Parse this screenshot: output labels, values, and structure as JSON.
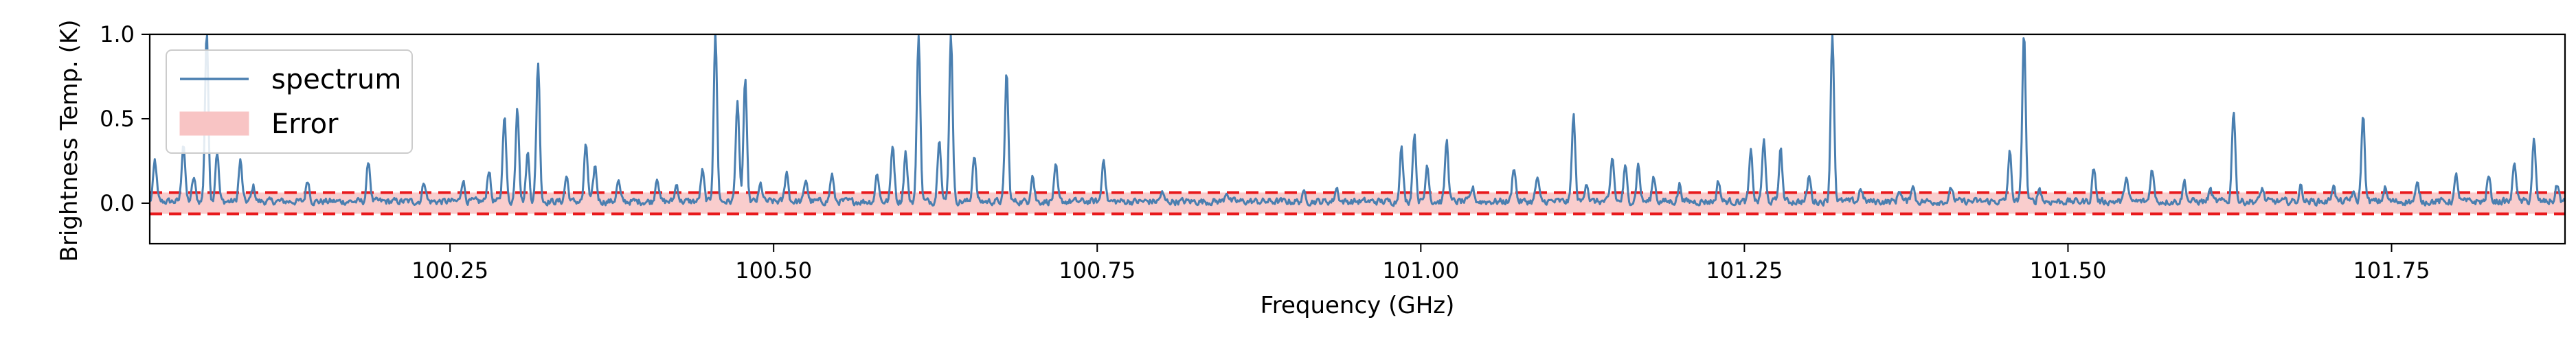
{
  "chart_data": {
    "type": "line",
    "xlabel": "Frequency (GHz)",
    "ylabel": "Brightness Temp. (K)",
    "xlim": [
      100.018,
      101.884
    ],
    "ylim": [
      -0.24,
      1.0
    ],
    "x_ticks": [
      100.25,
      100.5,
      100.75,
      101.0,
      101.25,
      101.5,
      101.75
    ],
    "x_tick_labels": [
      "100.25",
      "100.50",
      "100.75",
      "101.00",
      "101.25",
      "101.50",
      "101.75"
    ],
    "y_ticks": [
      0.0,
      0.5,
      1.0
    ],
    "y_tick_labels": [
      "0.0",
      "0.5",
      "1.0"
    ],
    "grid": false,
    "legend_position": "top-left",
    "legend": [
      {
        "label": "spectrum",
        "kind": "line"
      },
      {
        "label": "Error",
        "kind": "band"
      }
    ],
    "colors": {
      "spectrum": "#4a7fb0",
      "error_fill": "#f8c4c4",
      "error_line": "#e8191c"
    },
    "error_band": {
      "lower": -0.063,
      "upper": 0.063,
      "line_style": "dashed"
    },
    "baseline": {
      "mean": 0.01,
      "noise": 0.03
    },
    "series": [
      {
        "name": "spectrum",
        "peaks": [
          [
            100.022,
            0.24
          ],
          [
            100.044,
            0.35
          ],
          [
            100.052,
            0.14
          ],
          [
            100.062,
            1.0
          ],
          [
            100.07,
            0.3
          ],
          [
            100.088,
            0.24
          ],
          [
            100.098,
            0.09
          ],
          [
            100.14,
            0.13
          ],
          [
            100.187,
            0.24
          ],
          [
            100.23,
            0.12
          ],
          [
            100.26,
            0.13
          ],
          [
            100.28,
            0.19
          ],
          [
            100.292,
            0.52
          ],
          [
            100.302,
            0.57
          ],
          [
            100.31,
            0.29
          ],
          [
            100.318,
            0.83
          ],
          [
            100.34,
            0.15
          ],
          [
            100.355,
            0.34
          ],
          [
            100.362,
            0.21
          ],
          [
            100.38,
            0.12
          ],
          [
            100.41,
            0.15
          ],
          [
            100.425,
            0.1
          ],
          [
            100.445,
            0.18
          ],
          [
            100.455,
            1.0
          ],
          [
            100.472,
            0.6
          ],
          [
            100.478,
            0.72
          ],
          [
            100.49,
            0.1
          ],
          [
            100.51,
            0.18
          ],
          [
            100.525,
            0.13
          ],
          [
            100.545,
            0.16
          ],
          [
            100.58,
            0.17
          ],
          [
            100.592,
            0.34
          ],
          [
            100.602,
            0.29
          ],
          [
            100.612,
            1.0
          ],
          [
            100.628,
            0.39
          ],
          [
            100.637,
            1.0
          ],
          [
            100.655,
            0.28
          ],
          [
            100.68,
            0.77
          ],
          [
            100.7,
            0.16
          ],
          [
            100.718,
            0.2
          ],
          [
            100.755,
            0.26
          ],
          [
            100.8,
            0.05
          ],
          [
            100.85,
            0.06
          ],
          [
            100.91,
            0.05
          ],
          [
            100.935,
            0.08
          ],
          [
            100.985,
            0.32
          ],
          [
            100.995,
            0.4
          ],
          [
            101.005,
            0.22
          ],
          [
            101.02,
            0.36
          ],
          [
            101.04,
            0.08
          ],
          [
            101.072,
            0.21
          ],
          [
            101.09,
            0.14
          ],
          [
            101.118,
            0.51
          ],
          [
            101.128,
            0.12
          ],
          [
            101.148,
            0.26
          ],
          [
            101.158,
            0.2
          ],
          [
            101.168,
            0.22
          ],
          [
            101.18,
            0.15
          ],
          [
            101.2,
            0.1
          ],
          [
            101.23,
            0.12
          ],
          [
            101.255,
            0.29
          ],
          [
            101.265,
            0.36
          ],
          [
            101.278,
            0.31
          ],
          [
            101.3,
            0.15
          ],
          [
            101.318,
            1.0
          ],
          [
            101.34,
            0.08
          ],
          [
            101.37,
            0.07
          ],
          [
            101.38,
            0.1
          ],
          [
            101.41,
            0.08
          ],
          [
            101.455,
            0.29
          ],
          [
            101.466,
            1.0
          ],
          [
            101.478,
            0.08
          ],
          [
            101.52,
            0.2
          ],
          [
            101.545,
            0.15
          ],
          [
            101.565,
            0.2
          ],
          [
            101.59,
            0.12
          ],
          [
            101.61,
            0.07
          ],
          [
            101.628,
            0.55
          ],
          [
            101.65,
            0.08
          ],
          [
            101.68,
            0.09
          ],
          [
            101.705,
            0.1
          ],
          [
            101.72,
            0.05
          ],
          [
            101.728,
            0.51
          ],
          [
            101.745,
            0.08
          ],
          [
            101.77,
            0.1
          ],
          [
            101.8,
            0.15
          ],
          [
            101.825,
            0.15
          ],
          [
            101.845,
            0.24
          ],
          [
            101.86,
            0.36
          ],
          [
            101.878,
            0.1
          ]
        ]
      }
    ]
  }
}
